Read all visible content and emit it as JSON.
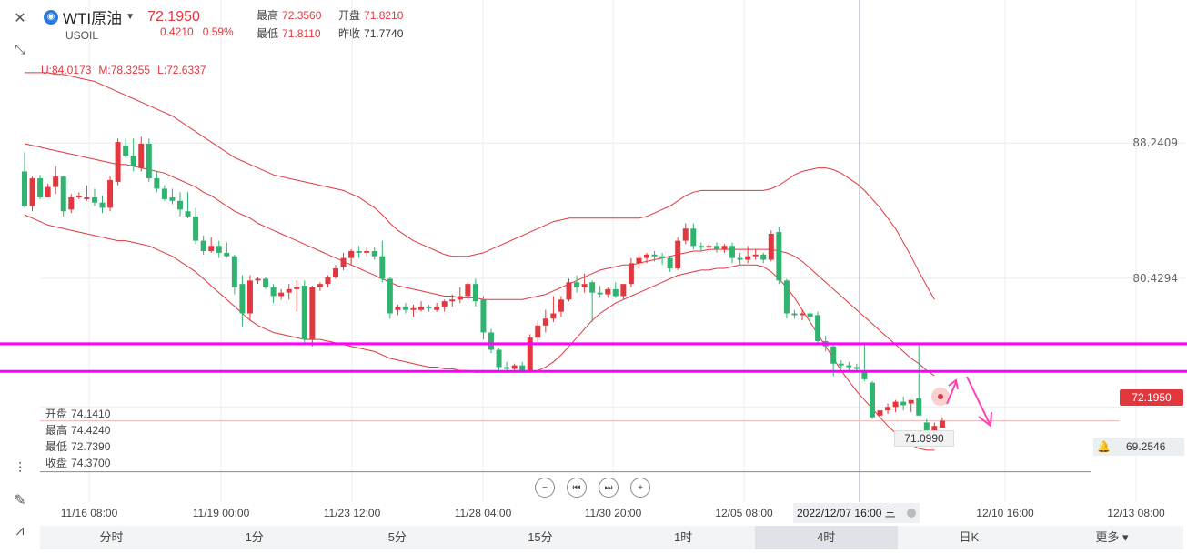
{
  "header": {
    "symbol_name": "WTI原油",
    "symbol_code": "USOIL",
    "last_price": "72.1950",
    "change": "0.4210",
    "change_pct": "0.59%",
    "high_label": "最高",
    "high_value": "72.3560",
    "open_label": "开盘",
    "open_value": "71.8210",
    "low_label": "最低",
    "low_value": "71.8110",
    "prev_label": "昨收",
    "prev_value": "71.7740"
  },
  "boll": {
    "upper": "U:84.0173",
    "middle": "M:78.3255",
    "lower": "L:72.6337"
  },
  "ohlc_panel": {
    "open_label": "开盘",
    "open": "74.1410",
    "high_label": "最高",
    "high": "74.4240",
    "low_label": "最低",
    "low": "72.7390",
    "close_label": "收盘",
    "close": "74.3700"
  },
  "tags": {
    "current_price": "72.1950",
    "alert_price": "69.2546",
    "low_marker": "71.0990"
  },
  "cursor_date": "2022/12/07 16:00 三",
  "timeframes": [
    "分时",
    "1分",
    "5分",
    "15分",
    "1时",
    "4时",
    "日K",
    "更多"
  ],
  "active_timeframe": "4时",
  "colors": {
    "up": "#e0383e",
    "down": "#2fb36f",
    "boll": "#e0383e",
    "level": "#ff00ff",
    "arrow": "#ff3fb4"
  },
  "chart_data": {
    "type": "candlestick",
    "symbol": "USOIL",
    "interval": "4h",
    "y_axis_labels": [
      "88.2409",
      "80.4294"
    ],
    "ylim": [
      67.5,
      96.5
    ],
    "x_labels": [
      "11/16 08:00",
      "11/19 00:00",
      "11/23 12:00",
      "11/28 04:00",
      "11/30 20:00",
      "12/05 08:00",
      "12/10 16:00",
      "12/13 08:00"
    ],
    "horizontal_levels": [
      76.65,
      75.05
    ],
    "reference_line": 69.2546,
    "ohlc": [
      [
        86.6,
        87.7,
        84.5,
        84.6
      ],
      [
        84.6,
        86.3,
        84.3,
        86.2
      ],
      [
        86.2,
        86.4,
        85.0,
        85.1
      ],
      [
        85.1,
        85.9,
        85.1,
        85.7
      ],
      [
        85.7,
        86.9,
        85.3,
        86.3
      ],
      [
        86.3,
        86.3,
        84.0,
        84.3
      ],
      [
        84.4,
        85.3,
        84.2,
        85.1
      ],
      [
        85.1,
        85.4,
        85.0,
        85.2
      ],
      [
        85.0,
        85.8,
        84.9,
        85.1
      ],
      [
        85.1,
        85.6,
        84.6,
        84.8
      ],
      [
        84.8,
        85.2,
        84.2,
        84.5
      ],
      [
        84.5,
        86.3,
        84.3,
        86.1
      ],
      [
        86.0,
        88.5,
        85.8,
        88.3
      ],
      [
        88.1,
        88.5,
        87.4,
        87.5
      ],
      [
        87.5,
        88.5,
        86.6,
        86.9
      ],
      [
        86.8,
        88.6,
        86.6,
        88.2
      ],
      [
        88.2,
        88.5,
        86.0,
        86.2
      ],
      [
        86.2,
        86.6,
        85.4,
        85.6
      ],
      [
        85.6,
        85.8,
        84.9,
        85.0
      ],
      [
        85.1,
        85.6,
        84.7,
        84.9
      ],
      [
        84.9,
        85.4,
        84.0,
        84.4
      ],
      [
        84.3,
        85.4,
        83.9,
        84.0
      ],
      [
        84.0,
        84.5,
        82.4,
        82.6
      ],
      [
        82.6,
        82.9,
        81.8,
        82.0
      ],
      [
        82.0,
        82.8,
        81.9,
        82.3
      ],
      [
        82.3,
        82.6,
        81.6,
        81.9
      ],
      [
        81.9,
        82.5,
        81.6,
        81.7
      ],
      [
        81.7,
        81.8,
        79.5,
        79.9
      ],
      [
        80.1,
        80.6,
        77.6,
        78.4
      ],
      [
        78.4,
        80.6,
        78.0,
        80.3
      ],
      [
        80.3,
        80.5,
        80.1,
        80.4
      ],
      [
        80.4,
        80.5,
        79.8,
        79.9
      ],
      [
        79.9,
        80.1,
        79.0,
        79.4
      ],
      [
        79.4,
        79.8,
        79.2,
        79.6
      ],
      [
        79.6,
        80.1,
        79.2,
        79.8
      ],
      [
        79.8,
        80.3,
        78.5,
        79.9
      ],
      [
        80.0,
        80.3,
        76.6,
        76.9
      ],
      [
        76.9,
        80.0,
        76.5,
        79.9
      ],
      [
        79.9,
        80.2,
        79.7,
        80.1
      ],
      [
        80.1,
        80.6,
        79.9,
        80.5
      ],
      [
        80.5,
        81.2,
        80.4,
        81.0
      ],
      [
        81.1,
        81.9,
        80.9,
        81.6
      ],
      [
        81.6,
        82.1,
        81.2,
        82.0
      ],
      [
        82.0,
        82.3,
        81.6,
        81.9
      ],
      [
        81.9,
        82.2,
        81.7,
        82.0
      ],
      [
        82.0,
        82.2,
        81.5,
        81.7
      ],
      [
        81.7,
        82.6,
        80.2,
        80.4
      ],
      [
        80.4,
        80.5,
        78.1,
        78.4
      ],
      [
        78.6,
        78.9,
        78.3,
        78.8
      ],
      [
        78.8,
        79.0,
        78.4,
        78.6
      ],
      [
        78.6,
        78.9,
        78.2,
        78.7
      ],
      [
        78.6,
        79.1,
        78.5,
        78.8
      ],
      [
        78.8,
        78.9,
        78.5,
        78.7
      ],
      [
        78.6,
        79.0,
        78.5,
        78.8
      ],
      [
        78.8,
        79.2,
        78.5,
        79.1
      ],
      [
        79.1,
        79.5,
        78.8,
        79.2
      ],
      [
        79.2,
        79.9,
        79.0,
        79.4
      ],
      [
        79.4,
        80.2,
        79.2,
        80.1
      ],
      [
        80.1,
        80.4,
        78.8,
        79.1
      ],
      [
        79.2,
        79.4,
        76.9,
        77.3
      ],
      [
        77.3,
        77.5,
        76.1,
        76.3
      ],
      [
        76.3,
        76.4,
        75.1,
        75.3
      ],
      [
        75.3,
        75.6,
        75.1,
        75.2
      ],
      [
        75.2,
        75.5,
        75.1,
        75.4
      ],
      [
        75.4,
        75.6,
        75.0,
        75.1
      ],
      [
        75.1,
        77.2,
        75.0,
        77.0
      ],
      [
        77.0,
        78.0,
        76.6,
        77.7
      ],
      [
        77.7,
        78.6,
        77.3,
        78.1
      ],
      [
        78.1,
        79.4,
        77.9,
        78.4
      ],
      [
        78.5,
        79.4,
        78.2,
        79.2
      ],
      [
        79.2,
        80.4,
        79.1,
        80.2
      ],
      [
        80.2,
        80.6,
        79.6,
        79.9
      ],
      [
        79.9,
        80.7,
        79.6,
        80.1
      ],
      [
        80.2,
        80.3,
        77.9,
        79.6
      ],
      [
        79.6,
        80.0,
        79.3,
        79.5
      ],
      [
        79.5,
        79.9,
        79.3,
        79.8
      ],
      [
        79.8,
        80.2,
        79.3,
        79.4
      ],
      [
        79.4,
        80.1,
        79.2,
        80.1
      ],
      [
        80.1,
        81.6,
        79.9,
        81.3
      ],
      [
        81.3,
        81.8,
        81.0,
        81.6
      ],
      [
        81.6,
        81.9,
        81.3,
        81.8
      ],
      [
        81.8,
        82.0,
        81.4,
        81.7
      ],
      [
        81.7,
        81.9,
        81.2,
        81.6
      ],
      [
        81.6,
        81.7,
        80.8,
        81.0
      ],
      [
        81.0,
        82.8,
        80.9,
        82.6
      ],
      [
        82.6,
        83.6,
        82.4,
        83.3
      ],
      [
        83.3,
        83.6,
        82.1,
        82.3
      ],
      [
        82.3,
        82.5,
        82.0,
        82.2
      ],
      [
        82.2,
        82.4,
        82.0,
        82.3
      ],
      [
        82.3,
        82.5,
        81.9,
        82.1
      ],
      [
        82.1,
        82.4,
        81.9,
        82.3
      ],
      [
        82.3,
        82.5,
        81.3,
        81.6
      ],
      [
        81.6,
        81.9,
        81.2,
        81.5
      ],
      [
        81.5,
        82.3,
        81.3,
        81.7
      ],
      [
        81.7,
        82.1,
        81.5,
        81.8
      ],
      [
        81.8,
        81.9,
        81.3,
        81.5
      ],
      [
        81.5,
        83.2,
        81.4,
        83.0
      ],
      [
        83.1,
        83.4,
        80.1,
        80.3
      ],
      [
        80.3,
        80.4,
        78.1,
        78.4
      ],
      [
        78.4,
        78.6,
        78.1,
        78.3
      ],
      [
        78.3,
        78.6,
        78.0,
        78.4
      ],
      [
        78.4,
        78.5,
        77.9,
        78.2
      ],
      [
        78.3,
        78.5,
        76.6,
        76.8
      ],
      [
        76.8,
        77.1,
        76.2,
        76.5
      ],
      [
        76.5,
        76.7,
        74.8,
        75.5
      ],
      [
        75.5,
        75.7,
        75.2,
        75.4
      ],
      [
        75.4,
        75.6,
        75.1,
        75.3
      ],
      [
        75.3,
        75.5,
        75.0,
        75.2
      ],
      [
        75.1,
        76.7,
        74.5,
        74.6
      ],
      [
        74.4,
        74.5,
        72.3,
        72.4
      ],
      [
        72.5,
        72.9,
        72.4,
        72.8
      ],
      [
        72.8,
        73.2,
        72.6,
        73.0
      ],
      [
        73.0,
        73.4,
        72.7,
        73.3
      ],
      [
        73.3,
        73.6,
        72.8,
        73.1
      ],
      [
        73.2,
        73.4,
        72.7,
        73.4
      ],
      [
        73.5,
        76.6,
        72.5,
        72.5
      ],
      [
        72.1,
        72.3,
        71.1,
        71.6
      ],
      [
        71.6,
        72.1,
        71.6,
        71.9
      ],
      [
        71.8,
        72.4,
        71.8,
        72.2
      ]
    ],
    "boll_upper": [
      92.3,
      92.3,
      92.3,
      92.3,
      92.2,
      92.2,
      92.1,
      92.0,
      91.9,
      91.8,
      91.6,
      91.4,
      91.2,
      91.0,
      90.8,
      90.6,
      90.4,
      90.2,
      90.0,
      89.8,
      89.5,
      89.2,
      88.9,
      88.6,
      88.3,
      88.0,
      87.7,
      87.4,
      87.2,
      87.0,
      86.8,
      86.6,
      86.4,
      86.3,
      86.2,
      86.1,
      86.0,
      85.9,
      85.8,
      85.7,
      85.6,
      85.5,
      85.3,
      85.1,
      84.8,
      84.5,
      84.1,
      83.6,
      83.2,
      82.9,
      82.6,
      82.4,
      82.2,
      82.0,
      81.8,
      81.7,
      81.7,
      81.7,
      81.8,
      81.9,
      82.1,
      82.3,
      82.5,
      82.7,
      82.9,
      83.1,
      83.3,
      83.5,
      83.7,
      83.8,
      83.9,
      83.9,
      83.9,
      83.9,
      83.9,
      83.9,
      83.9,
      83.9,
      83.9,
      83.9,
      84.0,
      84.2,
      84.4,
      84.6,
      84.9,
      85.2,
      85.4,
      85.5,
      85.5,
      85.5,
      85.5,
      85.5,
      85.5,
      85.5,
      85.5,
      85.5,
      85.6,
      85.8,
      86.1,
      86.4,
      86.6,
      86.7,
      86.8,
      86.8,
      86.7,
      86.5,
      86.2,
      85.9,
      85.5,
      85.0,
      84.5,
      83.9,
      83.3,
      82.5,
      81.7,
      80.8,
      80.0,
      79.2
    ],
    "boll_middle": [
      88.2,
      88.1,
      88.0,
      87.9,
      87.8,
      87.7,
      87.6,
      87.5,
      87.4,
      87.3,
      87.2,
      87.1,
      87.0,
      87.0,
      86.9,
      86.8,
      86.7,
      86.6,
      86.5,
      86.3,
      86.1,
      85.9,
      85.7,
      85.4,
      85.2,
      84.9,
      84.6,
      84.3,
      84.1,
      83.9,
      83.6,
      83.4,
      83.2,
      83.0,
      82.8,
      82.6,
      82.4,
      82.2,
      82.0,
      81.8,
      81.6,
      81.4,
      81.2,
      81.0,
      80.8,
      80.6,
      80.4,
      80.2,
      80.0,
      79.9,
      79.8,
      79.7,
      79.6,
      79.5,
      79.4,
      79.4,
      79.3,
      79.3,
      79.3,
      79.2,
      79.2,
      79.2,
      79.2,
      79.2,
      79.2,
      79.3,
      79.4,
      79.5,
      79.7,
      79.9,
      80.1,
      80.3,
      80.5,
      80.7,
      80.9,
      81.0,
      81.1,
      81.2,
      81.2,
      81.3,
      81.4,
      81.5,
      81.6,
      81.7,
      81.8,
      81.9,
      82.0,
      82.0,
      82.1,
      82.1,
      82.1,
      82.1,
      82.1,
      82.1,
      82.1,
      82.1,
      82.1,
      82.0,
      81.9,
      81.7,
      81.4,
      81.0,
      80.6,
      80.2,
      79.8,
      79.4,
      79.0,
      78.6,
      78.2,
      77.8,
      77.4,
      77.0,
      76.6,
      76.2,
      75.8,
      75.5,
      75.1,
      74.8
    ],
    "boll_lower": [
      84.1,
      83.9,
      83.7,
      83.5,
      83.4,
      83.3,
      83.2,
      83.1,
      83.0,
      82.9,
      82.8,
      82.7,
      82.6,
      82.6,
      82.5,
      82.4,
      82.3,
      82.1,
      81.9,
      81.7,
      81.4,
      81.1,
      80.8,
      80.4,
      80.0,
      79.6,
      79.2,
      78.8,
      78.4,
      78.0,
      77.7,
      77.5,
      77.3,
      77.2,
      77.1,
      77.0,
      76.9,
      76.9,
      76.9,
      76.8,
      76.7,
      76.6,
      76.5,
      76.4,
      76.3,
      76.2,
      76.0,
      75.8,
      75.7,
      75.6,
      75.5,
      75.4,
      75.3,
      75.3,
      75.2,
      75.2,
      75.1,
      75.1,
      75.0,
      75.0,
      75.0,
      75.0,
      75.0,
      75.0,
      75.0,
      75.0,
      75.1,
      75.3,
      75.6,
      76.0,
      76.5,
      77.0,
      77.5,
      78.0,
      78.4,
      78.7,
      79.0,
      79.2,
      79.4,
      79.6,
      79.8,
      80.0,
      80.2,
      80.4,
      80.6,
      80.7,
      80.8,
      80.9,
      80.9,
      81.0,
      81.0,
      81.1,
      81.2,
      81.2,
      81.2,
      81.1,
      80.8,
      80.4,
      79.9,
      79.3,
      78.6,
      77.9,
      77.2,
      76.5,
      75.8,
      75.1,
      74.5,
      73.9,
      73.4,
      72.9,
      72.4,
      71.9,
      71.5,
      71.1,
      70.8,
      70.6,
      70.5,
      70.5
    ]
  }
}
